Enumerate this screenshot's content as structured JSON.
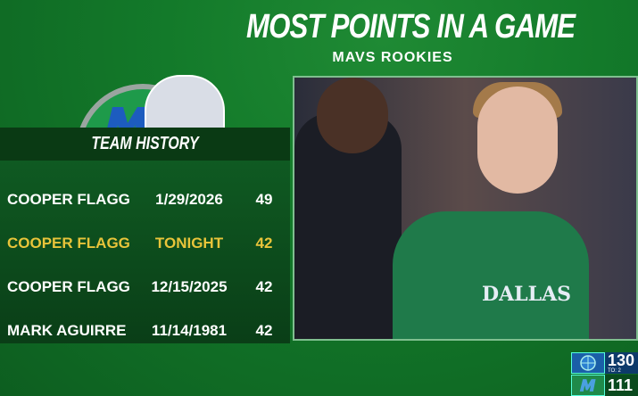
{
  "header": {
    "title": "MOST POINTS IN A GAME",
    "subtitle": "MAVS ROOKIES"
  },
  "section_label": "TEAM HISTORY",
  "rows": [
    {
      "name": "COOPER FLAGG",
      "date": "1/29/2026",
      "points": "49",
      "highlight": false
    },
    {
      "name": "COOPER FLAGG",
      "date": "TONIGHT",
      "points": "42",
      "highlight": true
    },
    {
      "name": "COOPER FLAGG",
      "date": "12/15/2025",
      "points": "42",
      "highlight": false
    },
    {
      "name": "MARK AGUIRRE",
      "date": "11/14/1981",
      "points": "42",
      "highlight": false
    }
  ],
  "photo": {
    "jersey_text": "DALLAS"
  },
  "scorebug": {
    "away_score": "130",
    "away_timeouts": "TO: 2",
    "home_score": "111"
  },
  "colors": {
    "highlight": "#e8c43a",
    "background": "#137a2a"
  }
}
